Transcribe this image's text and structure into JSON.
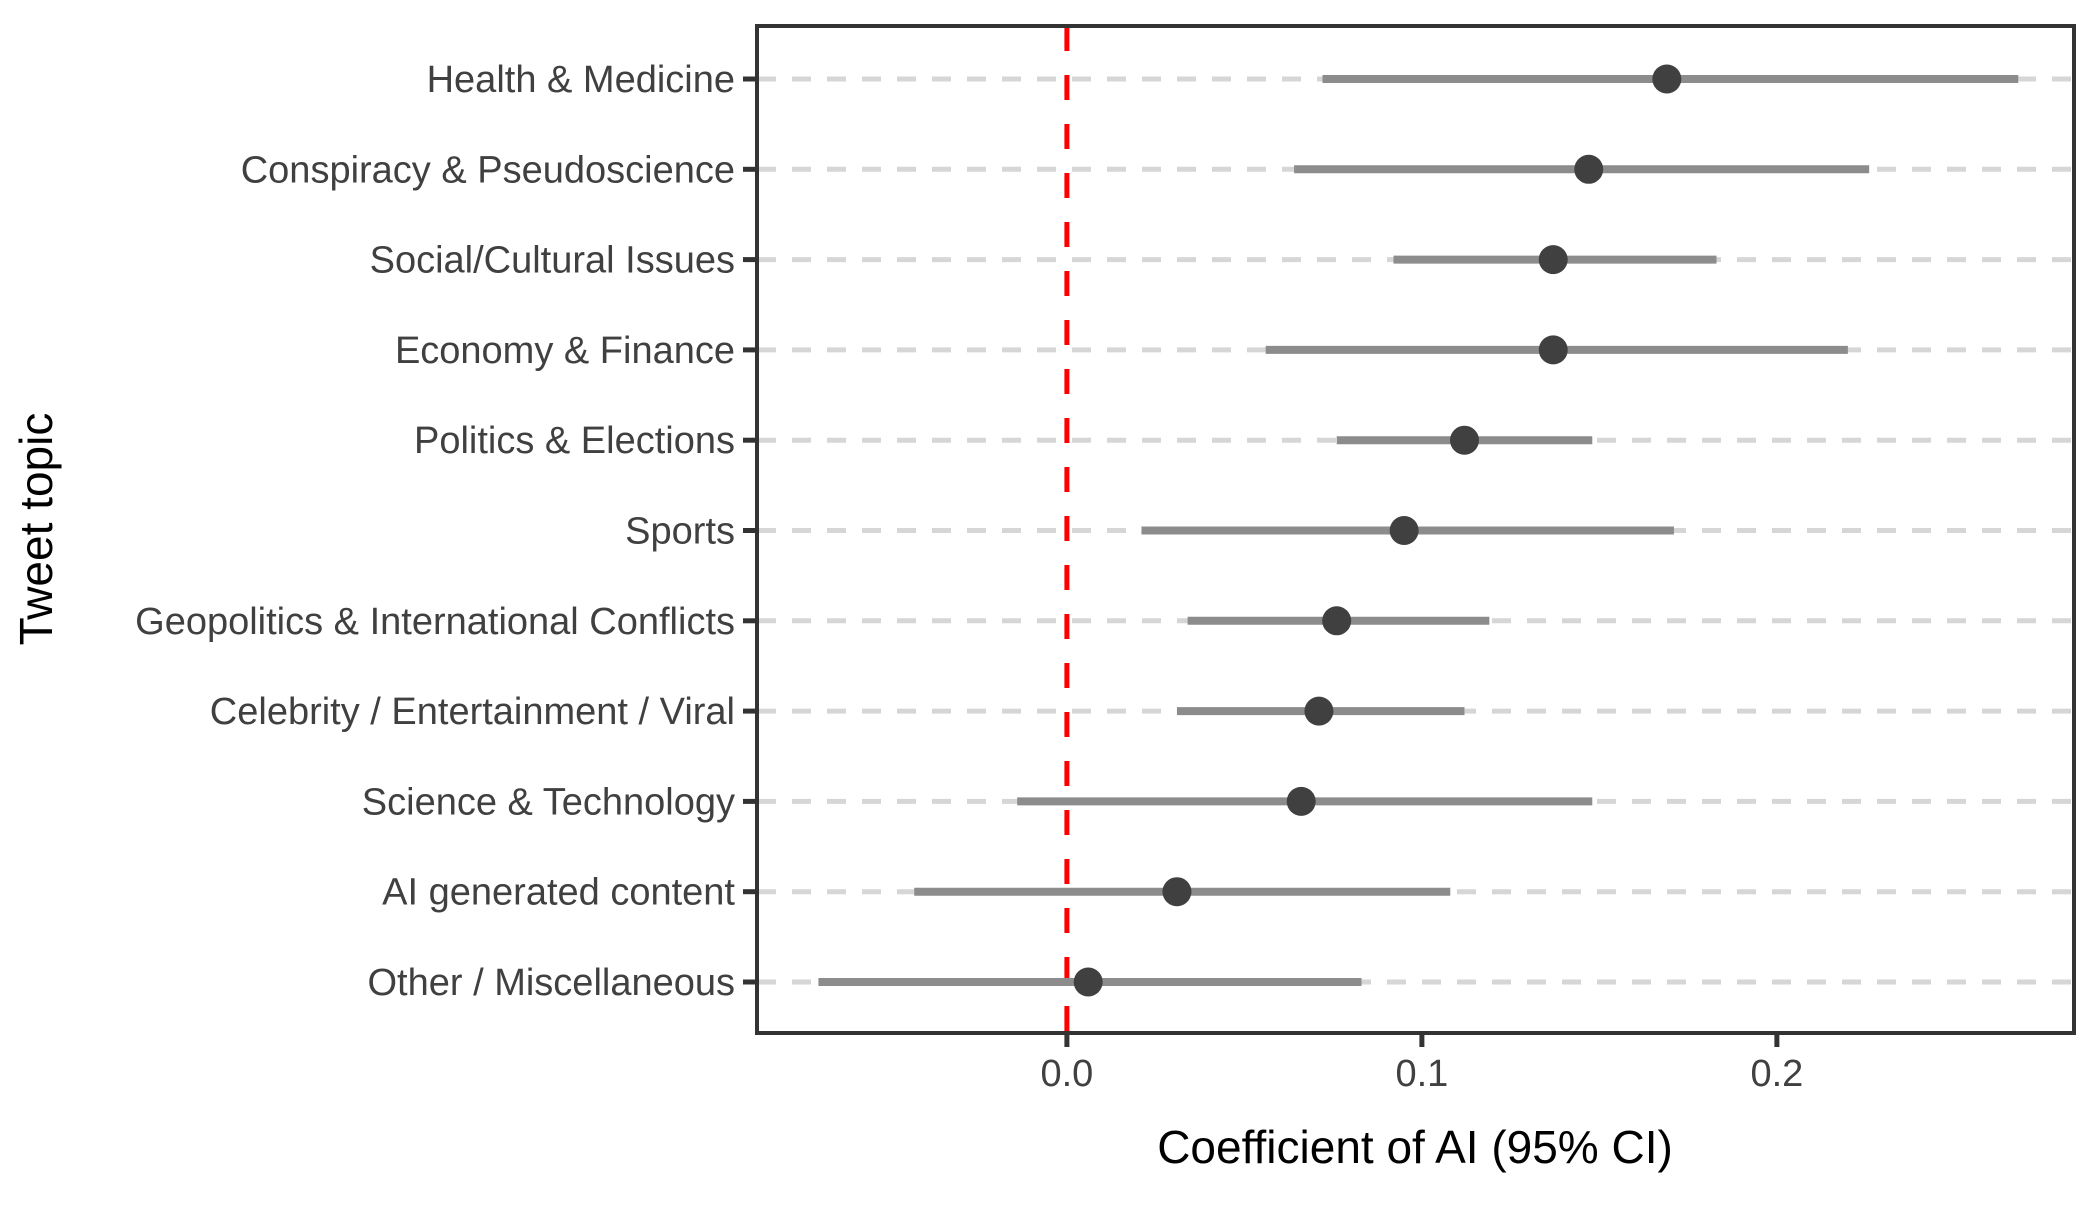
{
  "chart_data": {
    "type": "scatter",
    "subtype": "forest-plot-with-error-bars",
    "title": "",
    "xlabel": "Coefficient of AI (95% CI)",
    "ylabel": "Tweet topic",
    "xlim": [
      -0.0873,
      0.2837
    ],
    "x_tick_values": [
      0.0,
      0.1,
      0.2
    ],
    "x_tick_labels": [
      "0.0",
      "0.1",
      "0.2"
    ],
    "grid": "dashed-horizontal-per-category",
    "legend": "none",
    "reference_line": {
      "x": 0.0,
      "style": "dashed",
      "color_name": "red"
    },
    "categories": [
      "Health & Medicine",
      "Conspiracy & Pseudoscience",
      "Social/Cultural Issues",
      "Economy & Finance",
      "Politics & Elections",
      "Sports",
      "Geopolitics & International Conflicts",
      "Celebrity / Entertainment / Viral",
      "Science & Technology",
      "AI generated content",
      "Other / Miscellaneous"
    ],
    "points": [
      {
        "topic": "Health & Medicine",
        "estimate": 0.169,
        "ci_low": 0.072,
        "ci_high": 0.268
      },
      {
        "topic": "Conspiracy & Pseudoscience",
        "estimate": 0.147,
        "ci_low": 0.064,
        "ci_high": 0.226
      },
      {
        "topic": "Social/Cultural Issues",
        "estimate": 0.137,
        "ci_low": 0.092,
        "ci_high": 0.183
      },
      {
        "topic": "Economy & Finance",
        "estimate": 0.137,
        "ci_low": 0.056,
        "ci_high": 0.22
      },
      {
        "topic": "Politics & Elections",
        "estimate": 0.112,
        "ci_low": 0.076,
        "ci_high": 0.148
      },
      {
        "topic": "Sports",
        "estimate": 0.095,
        "ci_low": 0.021,
        "ci_high": 0.171
      },
      {
        "topic": "Geopolitics & International Conflicts",
        "estimate": 0.076,
        "ci_low": 0.034,
        "ci_high": 0.119
      },
      {
        "topic": "Celebrity / Entertainment / Viral",
        "estimate": 0.071,
        "ci_low": 0.031,
        "ci_high": 0.112
      },
      {
        "topic": "Science & Technology",
        "estimate": 0.066,
        "ci_low": -0.014,
        "ci_high": 0.148
      },
      {
        "topic": "AI generated content",
        "estimate": 0.031,
        "ci_low": -0.043,
        "ci_high": 0.108
      },
      {
        "topic": "Other / Miscellaneous",
        "estimate": 0.006,
        "ci_low": -0.07,
        "ci_high": 0.083
      }
    ],
    "colors": {
      "point": "#404040",
      "ci_bar": "#8C8C8C",
      "reference_line": "#FF0000",
      "gridline": "#D6D6D6",
      "panel_border": "#333333",
      "axis_text": "#404040",
      "axis_title": "#000000",
      "background": "#FFFFFF"
    }
  }
}
